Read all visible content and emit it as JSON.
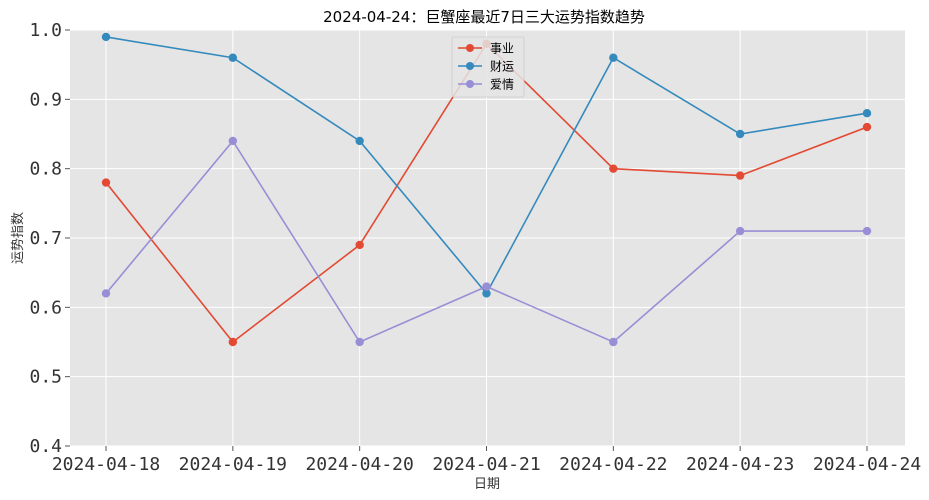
{
  "chart_data": {
    "type": "line",
    "title": "2024-04-24：巨蟹座最近7日三大运势指数趋势",
    "xlabel": "日期",
    "ylabel": "运势指数",
    "categories": [
      "2024-04-18",
      "2024-04-19",
      "2024-04-20",
      "2024-04-21",
      "2024-04-22",
      "2024-04-23",
      "2024-04-24"
    ],
    "ylim": [
      0.4,
      1.0
    ],
    "yticks": [
      "0.4",
      "0.5",
      "0.6",
      "0.7",
      "0.8",
      "0.9",
      "1.0"
    ],
    "grid": true,
    "legend_position": "top-center",
    "series": [
      {
        "name": "事业",
        "color": "#E24A33",
        "values": [
          0.78,
          0.55,
          0.69,
          0.98,
          0.8,
          0.79,
          0.86
        ]
      },
      {
        "name": "财运",
        "color": "#348ABD",
        "values": [
          0.99,
          0.96,
          0.84,
          0.62,
          0.96,
          0.85,
          0.88
        ]
      },
      {
        "name": "爱情",
        "color": "#988ED5",
        "values": [
          0.62,
          0.84,
          0.55,
          0.63,
          0.55,
          0.71,
          0.71
        ]
      }
    ]
  }
}
